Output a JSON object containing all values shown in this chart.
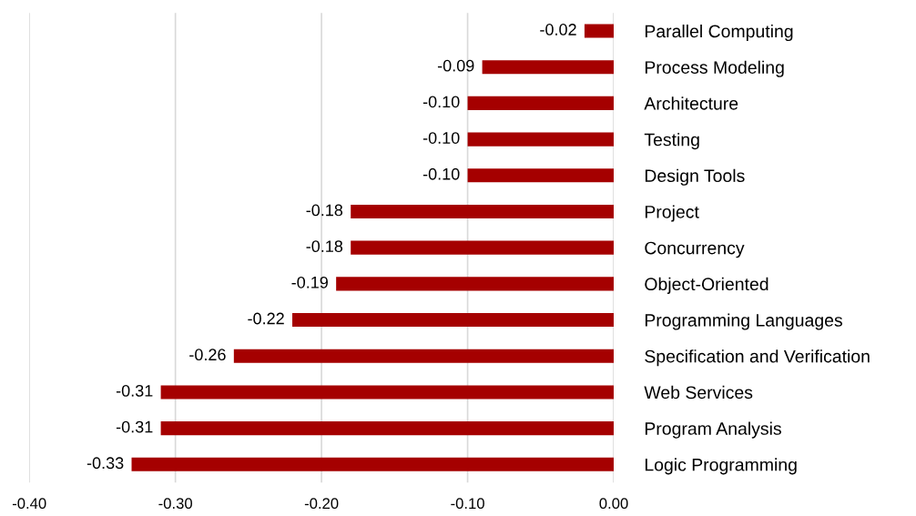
{
  "chart_data": {
    "type": "bar",
    "orientation": "horizontal",
    "categories": [
      "Parallel Computing",
      "Process Modeling",
      "Architecture",
      "Testing",
      "Design Tools",
      "Project",
      "Concurrency",
      "Object-Oriented",
      "Programming Languages",
      "Specification and Verification",
      "Web Services",
      "Program Analysis",
      "Logic Programming"
    ],
    "values": [
      -0.02,
      -0.09,
      -0.1,
      -0.1,
      -0.1,
      -0.18,
      -0.18,
      -0.19,
      -0.22,
      -0.26,
      -0.31,
      -0.31,
      -0.33
    ],
    "value_labels": [
      "-0.02",
      "-0.09",
      "-0.10",
      "-0.10",
      "-0.10",
      "-0.18",
      "-0.18",
      "-0.19",
      "-0.22",
      "-0.26",
      "-0.31",
      "-0.31",
      "-0.33"
    ],
    "color": "#a50000",
    "xlim": [
      -0.4,
      0.0
    ],
    "xticks": [
      {
        "value": -0.4,
        "label": "-0.40"
      },
      {
        "value": -0.3,
        "label": "-0.30"
      },
      {
        "value": -0.2,
        "label": "-0.20"
      },
      {
        "value": -0.1,
        "label": "-0.10"
      },
      {
        "value": 0.0,
        "label": "0.00"
      }
    ],
    "grid": "x",
    "legend": false
  }
}
